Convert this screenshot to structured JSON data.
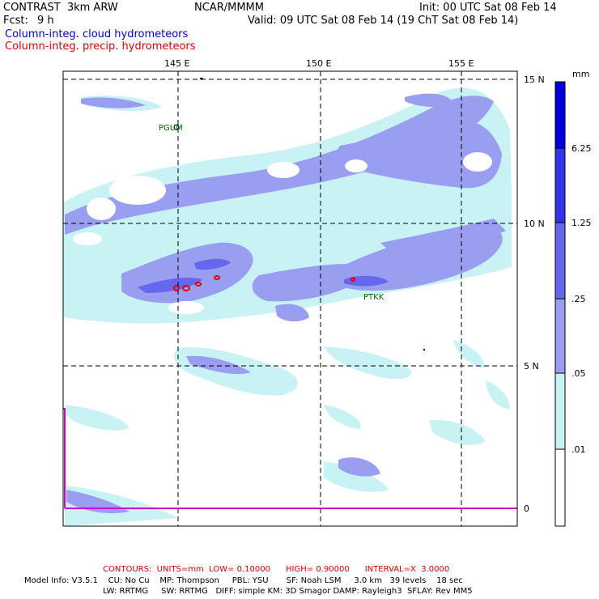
{
  "header": {
    "model": "CONTRAST  3km ARW",
    "center": "NCAR/MMMM",
    "init": "Init: 00 UTC Sat 08 Feb 14",
    "fcst_label": "Fcst:",
    "fcst_value": "9 h",
    "valid": "Valid: 09 UTC Sat 08 Feb 14 (19 ChT Sat 08 Feb 14)"
  },
  "legend": {
    "cloud": "Column-integ. cloud hydrometeors",
    "precip": "Column-integ. precip. hydrometeors",
    "cloud_color": "#0000cc",
    "precip_color": "#e00000"
  },
  "map": {
    "lon_labels": [
      "145 E",
      "150 E",
      "155 E"
    ],
    "lat_labels": [
      "15 N",
      "10 N",
      "5 N",
      "0"
    ],
    "stations": [
      "PGUM",
      "PTKK"
    ],
    "boundary_color": "#cc00cc"
  },
  "colorbar": {
    "unit": "mm",
    "levels": [
      "6.25",
      "1.25",
      ".25",
      ".05",
      ".01"
    ],
    "colors": [
      "#0000dd",
      "#3333ee",
      "#6666ee",
      "#9a9ef0",
      "#c9f2f4",
      "#ffffff"
    ]
  },
  "footer": {
    "contours": "CONTOURS:  UNITS=mm  LOW= 0.10000      HIGH= 0.90000      INTERVAL=X  3.0000",
    "model_info_1": "Model Info: V3.5.1    CU: No Cu    MP: Thompson     PBL: YSU       SF: Noah LSM     3.0 km   39 levels    18 sec",
    "model_info_2": "LW: RRTMG     SW: RRTMG   DIFF: simple KM: 3D Smagor DAMP: Rayleigh3  SFLAY: Rev MM5"
  }
}
